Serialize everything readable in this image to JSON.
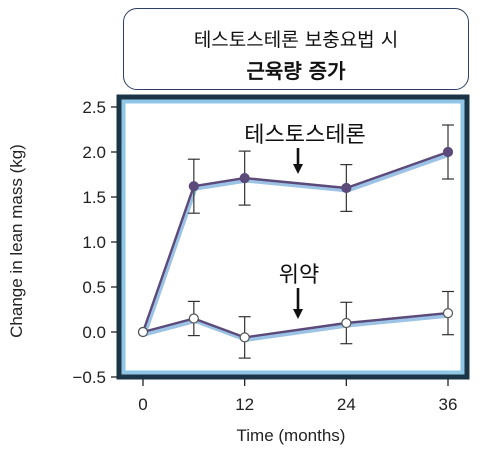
{
  "title_box": {
    "line1": "테스토스테론 보충요법 시",
    "line2": "근육량 증가"
  },
  "chart_data": {
    "type": "line",
    "xlabel": "Time (months)",
    "ylabel": "Change in lean mass (kg)",
    "xlim": [
      0,
      36
    ],
    "ylim": [
      -0.5,
      2.5
    ],
    "x_ticks": [
      0,
      12,
      24,
      36
    ],
    "y_ticks": [
      2.5,
      2.0,
      1.5,
      1.0,
      0.5,
      0.0,
      -0.5
    ],
    "y_tick_labels": [
      "2.5",
      "2.0",
      "1.5",
      "1.0",
      "0.5",
      "0.0",
      "−0.5"
    ],
    "grid": false,
    "series": [
      {
        "name": "테스토스테론",
        "x": [
          0,
          6,
          12,
          24,
          36
        ],
        "y": [
          0.0,
          1.62,
          1.71,
          1.6,
          2.0
        ],
        "err": [
          0.0,
          0.3,
          0.3,
          0.26,
          0.3
        ],
        "marker": "filled",
        "color": "#5b4a7a"
      },
      {
        "name": "위약",
        "x": [
          0,
          6,
          12,
          24,
          36
        ],
        "y": [
          0.0,
          0.15,
          -0.06,
          0.1,
          0.21
        ],
        "err": [
          0.0,
          0.19,
          0.23,
          0.23,
          0.24
        ],
        "marker": "open",
        "color": "#5b4a7a"
      }
    ],
    "colors": {
      "frame_outer": "#1b3446",
      "frame_inner": "#8fc6e6",
      "line_shadow": "#9cc3e6"
    }
  }
}
